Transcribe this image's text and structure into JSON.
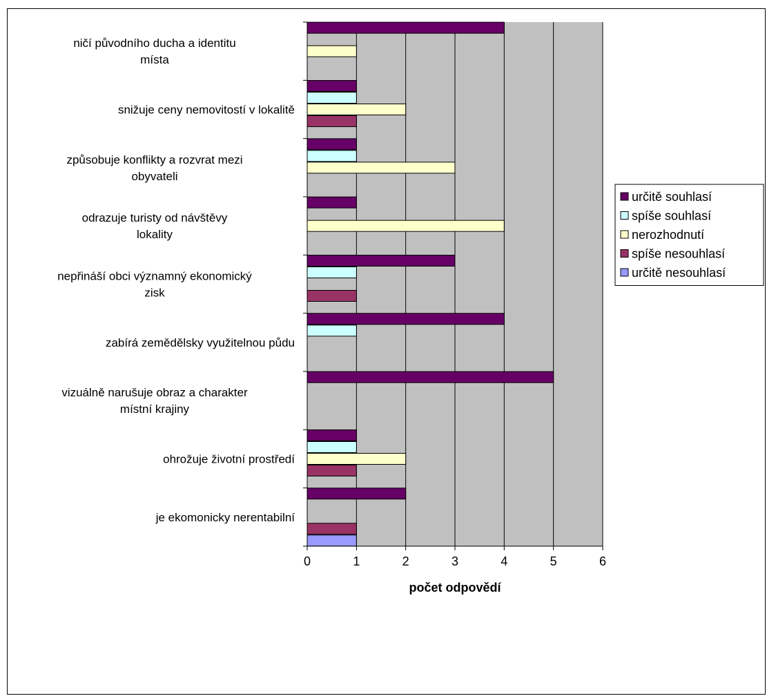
{
  "chart_data": {
    "type": "bar",
    "orientation": "horizontal",
    "title": "",
    "xlabel": "počet odpovědí",
    "ylabel": "",
    "xlim": [
      0,
      6
    ],
    "x_ticks": [
      0,
      1,
      2,
      3,
      4,
      5,
      6
    ],
    "grid": true,
    "legend_position": "right",
    "plot_background": "#C0C0C0",
    "categories": [
      "ničí původního ducha a identitu místa",
      "snižuje ceny nemovitostí v lokalitě",
      "způsobuje konflikty a rozvrat mezi obyvateli",
      "odrazuje turisty od návštěvy lokality",
      "nepřináší obci významný ekonomický zisk",
      "zabírá zemědělsky využitelnou půdu",
      "vizuálně narušuje obraz a charakter místní krajiny",
      "ohrožuje životní prostředí",
      "je ekomonicky nerentabilní"
    ],
    "series": [
      {
        "name": "určitě souhlasí",
        "color": "#660066",
        "values": [
          4,
          1,
          1,
          1,
          3,
          4,
          5,
          1,
          2
        ]
      },
      {
        "name": "spíše souhlasí",
        "color": "#CCFFFF",
        "values": [
          0,
          1,
          1,
          0,
          1,
          1,
          0,
          1,
          0
        ]
      },
      {
        "name": "nerozhodnutí",
        "color": "#FFFFCC",
        "values": [
          1,
          2,
          3,
          4,
          0,
          0,
          0,
          2,
          0
        ]
      },
      {
        "name": "spíše nesouhlasí",
        "color": "#993366",
        "values": [
          0,
          1,
          0,
          0,
          1,
          0,
          0,
          1,
          1
        ]
      },
      {
        "name": "určitě nesouhlasí",
        "color": "#9999FF",
        "values": [
          0,
          0,
          0,
          0,
          0,
          0,
          0,
          0,
          1
        ]
      }
    ]
  }
}
